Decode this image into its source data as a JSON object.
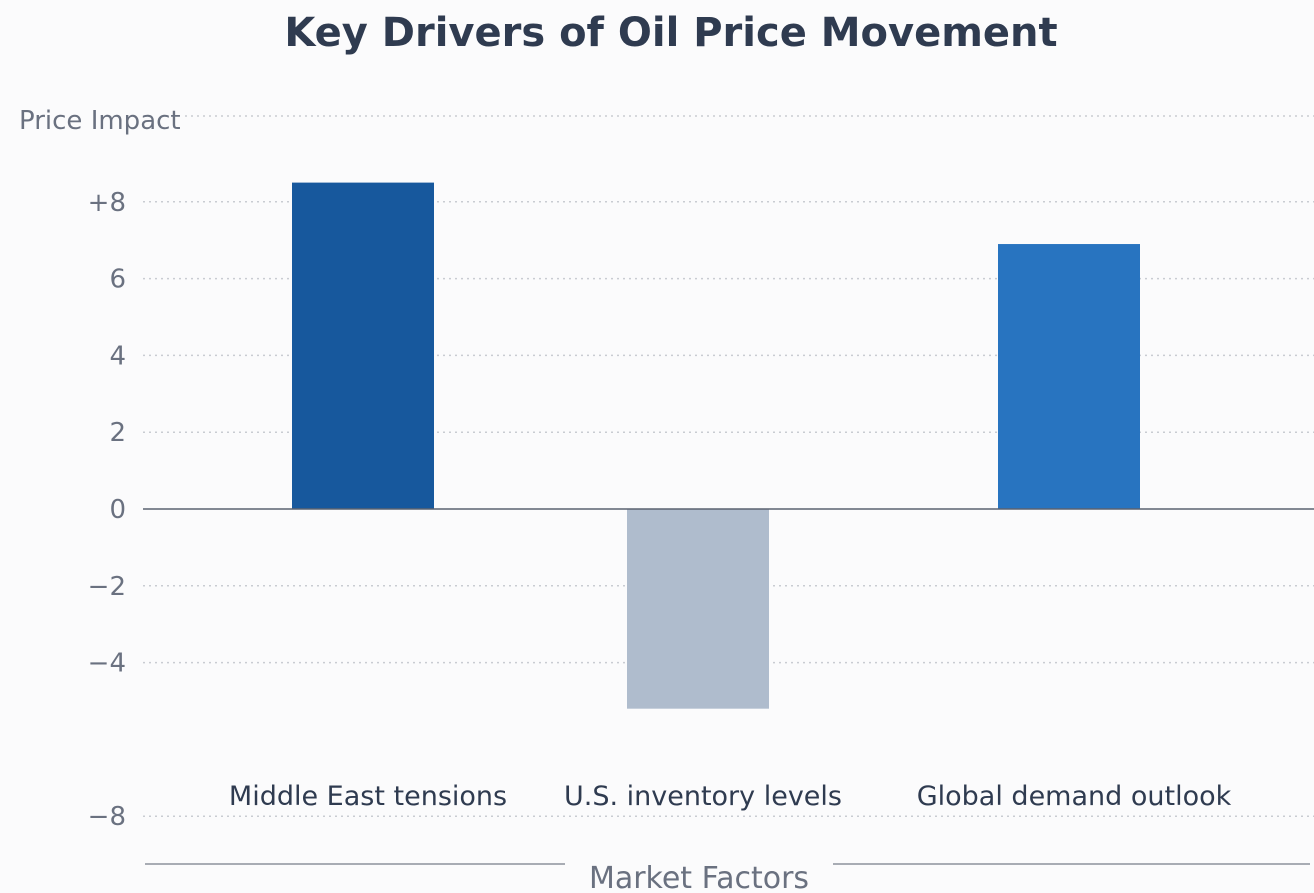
{
  "chart_data": {
    "type": "bar",
    "title": "Key Drivers of Oil Price Movement",
    "ylabel": "Price Impact",
    "xlabel": "Market Factors",
    "categories": [
      "Middle East tensions",
      "U.S. inventory levels",
      "Global demand outlook"
    ],
    "values": [
      8.5,
      -5.2,
      6.9
    ],
    "bar_colors": [
      "#17589d",
      "#afbccd",
      "#2874c0"
    ],
    "ylim": [
      -8,
      10
    ],
    "yticks": [
      {
        "value": 8,
        "label": "+8"
      },
      {
        "value": 6,
        "label": "6"
      },
      {
        "value": 4,
        "label": "4"
      },
      {
        "value": 2,
        "label": "2"
      },
      {
        "value": 0,
        "label": "0"
      },
      {
        "value": -2,
        "label": "−2"
      },
      {
        "value": -4,
        "label": "−4"
      },
      {
        "value": -8,
        "label": "−8"
      }
    ],
    "grid": true
  }
}
